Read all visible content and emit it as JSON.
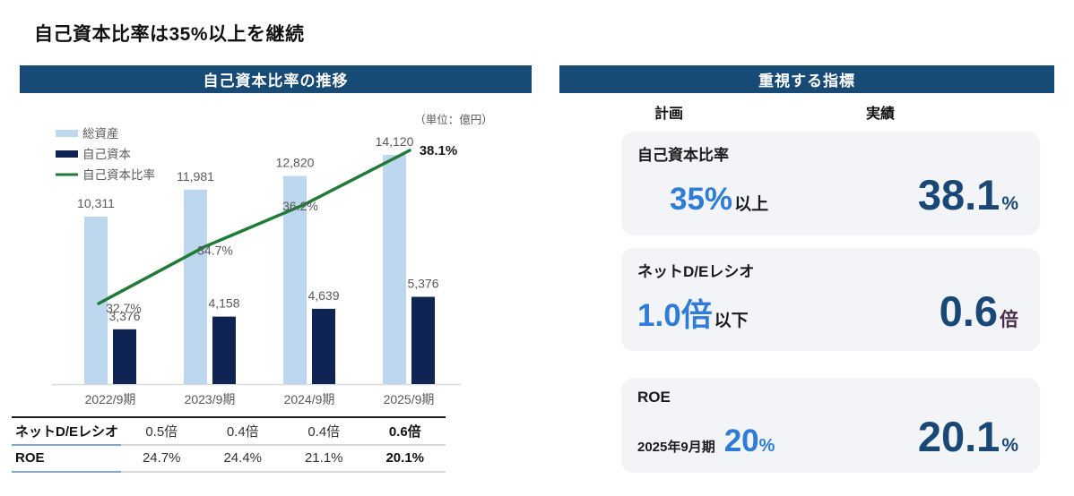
{
  "page": {
    "title": "自己資本比率は35%以上を継続"
  },
  "colors": {
    "header_navy": "#174A74",
    "bar_total_assets": "#BDD7EE",
    "bar_equity": "#0F2453",
    "line_ratio": "#217A38",
    "gray_text": "#595959",
    "accent_blue": "#2E7CD9",
    "value_navy": "#1A4876",
    "value_plum": "#4E2A4D",
    "card_bg": "#F2F4F7"
  },
  "chart_data": {
    "type": "combo",
    "title": "自己資本比率の推移",
    "unit_note": "（単位：億円）",
    "categories": [
      "2022/9期",
      "2023/9期",
      "2024/9期",
      "2025/9期"
    ],
    "series": [
      {
        "name": "総資産",
        "type": "bar",
        "values": [
          10311,
          11981,
          12820,
          14120
        ]
      },
      {
        "name": "自己資本",
        "type": "bar",
        "values": [
          3376,
          4158,
          4639,
          5376
        ]
      },
      {
        "name": "自己資本比率",
        "type": "line",
        "unit": "%",
        "values": [
          32.7,
          34.7,
          36.2,
          38.1
        ]
      }
    ],
    "legend_position": "top-left",
    "grid": false
  },
  "left_panel": {
    "header": "自己資本比率の推移",
    "table": {
      "rows": [
        {
          "label": "ネットD/Eレシオ",
          "values": [
            "0.5倍",
            "0.4倍",
            "0.4倍",
            "0.6倍"
          ]
        },
        {
          "label": "ROE",
          "values": [
            "24.7%",
            "24.4%",
            "21.1%",
            "20.1%"
          ]
        }
      ]
    }
  },
  "right_panel": {
    "header": "重視する指標",
    "col_plan": "計画",
    "col_actual": "実績",
    "cards": [
      {
        "title": "自己資本比率",
        "plan": {
          "prefix": "",
          "value": "35%",
          "sub": "",
          "suffix": "以上"
        },
        "actual": {
          "value": "38.1",
          "unit": "%",
          "unit_color": "value_navy"
        }
      },
      {
        "title": "ネットD/Eレシオ",
        "plan": {
          "prefix": "",
          "value": "1.0倍",
          "sub": "",
          "suffix": "以下"
        },
        "actual": {
          "value": "0.6",
          "unit": "倍",
          "unit_color": "value_plum"
        }
      },
      {
        "title": "ROE",
        "plan": {
          "prefix": "2025年9月期",
          "value": "20",
          "sub": "%",
          "suffix": ""
        },
        "actual": {
          "value": "20.1",
          "unit": "%",
          "unit_color": "value_navy"
        }
      }
    ]
  }
}
